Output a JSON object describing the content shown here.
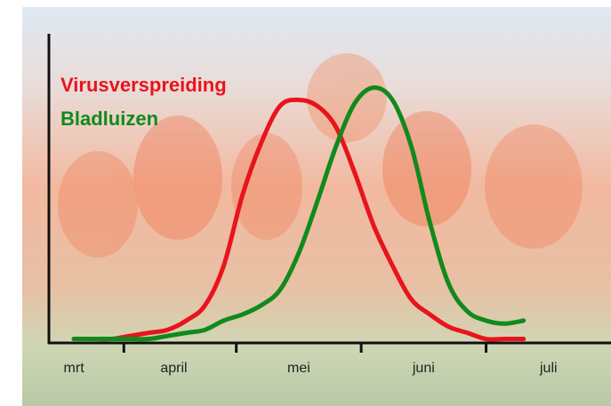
{
  "chart_data": {
    "type": "line",
    "x": [
      -0.3,
      -0.15,
      0,
      0.15,
      0.3,
      0.45,
      0.6,
      0.75,
      0.9,
      1.05,
      1.2,
      1.35,
      1.5,
      1.65,
      1.8,
      1.95,
      2.1,
      2.25,
      2.4,
      2.55,
      2.7,
      2.85,
      3.0,
      3.15,
      3.3
    ],
    "xlim": [
      -0.5,
      4
    ],
    "xticks": [
      {
        "value": -0.3,
        "label": "mrt"
      },
      {
        "value": 0.5,
        "label": "april"
      },
      {
        "value": 1.5,
        "label": "mei"
      },
      {
        "value": 2.5,
        "label": "juni"
      },
      {
        "value": 3.5,
        "label": "juli"
      }
    ],
    "ylim": [
      0,
      100
    ],
    "series": [
      {
        "name": "Virusverspreiding",
        "color": "#e8141c",
        "values": [
          1,
          1,
          1,
          2,
          3,
          4,
          7,
          12,
          25,
          48,
          65,
          77,
          79,
          77,
          70,
          55,
          38,
          25,
          14,
          9,
          5,
          3,
          1,
          1,
          1
        ]
      },
      {
        "name": "Bladluizen",
        "color": "#118a1c",
        "values": [
          1,
          1,
          1,
          1,
          1,
          2,
          3,
          4,
          7,
          9,
          12,
          17,
          29,
          46,
          64,
          78,
          83,
          79,
          64,
          39,
          19,
          10,
          7,
          6,
          7
        ]
      }
    ]
  }
}
